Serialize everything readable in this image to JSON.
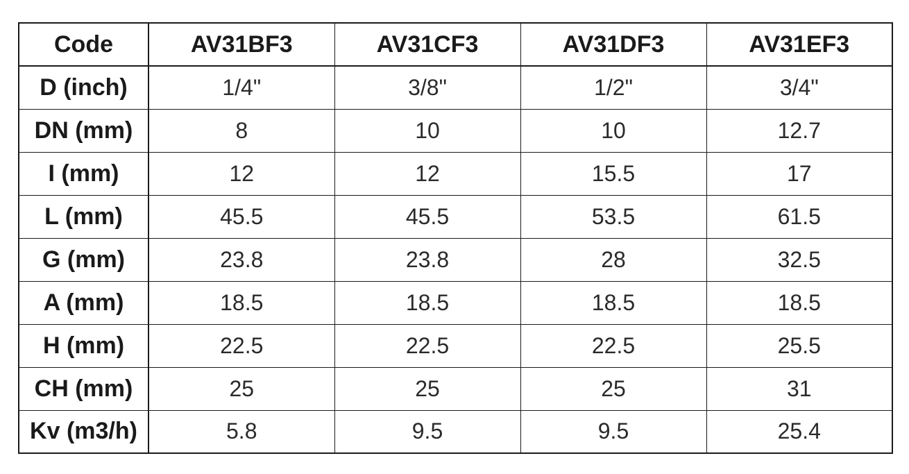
{
  "table": {
    "header": [
      "Code",
      "AV31BF3",
      "AV31CF3",
      "AV31DF3",
      "AV31EF3"
    ],
    "rows": [
      {
        "label": "D (inch)",
        "values": [
          "1/4\"",
          "3/8\"",
          "1/2\"",
          "3/4\""
        ]
      },
      {
        "label": "DN (mm)",
        "values": [
          "8",
          "10",
          "10",
          "12.7"
        ]
      },
      {
        "label": "I (mm)",
        "values": [
          "12",
          "12",
          "15.5",
          "17"
        ]
      },
      {
        "label": "L (mm)",
        "values": [
          "45.5",
          "45.5",
          "53.5",
          "61.5"
        ]
      },
      {
        "label": "G (mm)",
        "values": [
          "23.8",
          "23.8",
          "28",
          "32.5"
        ]
      },
      {
        "label": "A (mm)",
        "values": [
          "18.5",
          "18.5",
          "18.5",
          "18.5"
        ]
      },
      {
        "label": "H (mm)",
        "values": [
          "22.5",
          "22.5",
          "22.5",
          "25.5"
        ]
      },
      {
        "label": "CH (mm)",
        "values": [
          "25",
          "25",
          "25",
          "31"
        ]
      },
      {
        "label": "Kv (m3/h)",
        "values": [
          "5.8",
          "9.5",
          "9.5",
          "25.4"
        ]
      }
    ]
  }
}
